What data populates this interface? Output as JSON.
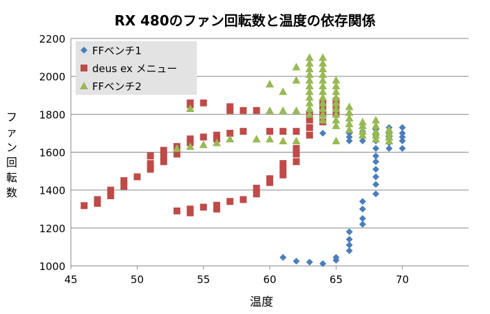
{
  "chart_data": {
    "type": "scatter",
    "title": "RX 480のファン回転数と温度の依存関係",
    "xlabel": "温度",
    "ylabel": "ファン回転数",
    "xlim": [
      45,
      75
    ],
    "ylim": [
      1000,
      2200
    ],
    "x_ticks": [
      "45",
      "50",
      "55",
      "60",
      "65",
      "70"
    ],
    "y_ticks": [
      "1000",
      "1200",
      "1400",
      "1600",
      "1800",
      "2000",
      "2200"
    ],
    "grid": "horizontal",
    "legend_position": "top-left",
    "series": [
      {
        "name": "FFベンチ1",
        "marker": "diamond",
        "color": "#4a7ebb",
        "points": [
          [
            61,
            1045
          ],
          [
            62,
            1025
          ],
          [
            63,
            1020
          ],
          [
            64,
            1012
          ],
          [
            65,
            1045
          ],
          [
            65,
            1030
          ],
          [
            66,
            1180
          ],
          [
            66,
            1140
          ],
          [
            66,
            1110
          ],
          [
            66,
            1080
          ],
          [
            67,
            1340
          ],
          [
            67,
            1300
          ],
          [
            67,
            1250
          ],
          [
            67,
            1220
          ],
          [
            68,
            1580
          ],
          [
            68,
            1550
          ],
          [
            68,
            1510
          ],
          [
            68,
            1470
          ],
          [
            68,
            1430
          ],
          [
            68,
            1380
          ],
          [
            68,
            1620
          ],
          [
            68,
            1660
          ],
          [
            68,
            1690
          ],
          [
            68,
            1720
          ],
          [
            67,
            1660
          ],
          [
            67,
            1680
          ],
          [
            67,
            1710
          ],
          [
            66,
            1660
          ],
          [
            66,
            1680
          ],
          [
            66,
            1700
          ],
          [
            64,
            1700
          ],
          [
            69,
            1620
          ],
          [
            69,
            1650
          ],
          [
            69,
            1680
          ],
          [
            69,
            1700
          ],
          [
            69,
            1730
          ],
          [
            70,
            1620
          ],
          [
            70,
            1660
          ],
          [
            70,
            1680
          ],
          [
            70,
            1700
          ],
          [
            70,
            1730
          ]
        ]
      },
      {
        "name": "deus ex メニュー",
        "marker": "square",
        "color": "#be4b48",
        "points": [
          [
            46,
            1318
          ],
          [
            47,
            1330
          ],
          [
            47,
            1350
          ],
          [
            48,
            1370
          ],
          [
            48,
            1400
          ],
          [
            49,
            1420
          ],
          [
            49,
            1450
          ],
          [
            50,
            1470
          ],
          [
            51,
            1510
          ],
          [
            51,
            1540
          ],
          [
            51,
            1580
          ],
          [
            52,
            1550
          ],
          [
            52,
            1580
          ],
          [
            52,
            1610
          ],
          [
            53,
            1590
          ],
          [
            53,
            1630
          ],
          [
            54,
            1650
          ],
          [
            54,
            1670
          ],
          [
            55,
            1680
          ],
          [
            56,
            1690
          ],
          [
            56,
            1670
          ],
          [
            57,
            1700
          ],
          [
            58,
            1710
          ],
          [
            60,
            1710
          ],
          [
            61,
            1710
          ],
          [
            62,
            1710
          ],
          [
            63,
            1690
          ],
          [
            63,
            1730
          ],
          [
            63,
            1770
          ],
          [
            63,
            1800
          ],
          [
            64,
            1760
          ],
          [
            64,
            1800
          ],
          [
            64,
            1840
          ],
          [
            64,
            1860
          ],
          [
            65,
            1800
          ],
          [
            65,
            1840
          ],
          [
            65,
            1870
          ],
          [
            54,
            1860
          ],
          [
            54,
            1850
          ],
          [
            55,
            1860
          ],
          [
            57,
            1820
          ],
          [
            57,
            1840
          ],
          [
            58,
            1820
          ],
          [
            59,
            1820
          ],
          [
            53,
            1290
          ],
          [
            54,
            1280
          ],
          [
            54,
            1300
          ],
          [
            55,
            1310
          ],
          [
            56,
            1320
          ],
          [
            56,
            1300
          ],
          [
            57,
            1340
          ],
          [
            58,
            1350
          ],
          [
            59,
            1380
          ],
          [
            59,
            1410
          ],
          [
            60,
            1440
          ],
          [
            60,
            1460
          ],
          [
            61,
            1480
          ],
          [
            61,
            1510
          ],
          [
            61,
            1540
          ],
          [
            62,
            1550
          ],
          [
            62,
            1590
          ],
          [
            62,
            1620
          ]
        ]
      },
      {
        "name": "FFベンチ2",
        "marker": "triangle",
        "color": "#98b954",
        "points": [
          [
            53,
            1620
          ],
          [
            54,
            1630
          ],
          [
            54,
            1830
          ],
          [
            55,
            1640
          ],
          [
            56,
            1650
          ],
          [
            57,
            1670
          ],
          [
            59,
            1670
          ],
          [
            60,
            1960
          ],
          [
            60,
            1820
          ],
          [
            60,
            1670
          ],
          [
            61,
            1920
          ],
          [
            61,
            1820
          ],
          [
            61,
            1660
          ],
          [
            62,
            2050
          ],
          [
            62,
            1820
          ],
          [
            62,
            1660
          ],
          [
            62,
            1980
          ],
          [
            63,
            2100
          ],
          [
            63,
            2070
          ],
          [
            63,
            2040
          ],
          [
            63,
            2010
          ],
          [
            63,
            1980
          ],
          [
            63,
            1950
          ],
          [
            63,
            1920
          ],
          [
            63,
            1890
          ],
          [
            63,
            1860
          ],
          [
            63,
            1830
          ],
          [
            63,
            1800
          ],
          [
            64,
            2100
          ],
          [
            64,
            2070
          ],
          [
            64,
            2040
          ],
          [
            64,
            2010
          ],
          [
            64,
            1980
          ],
          [
            64,
            1950
          ],
          [
            64,
            1920
          ],
          [
            64,
            1890
          ],
          [
            64,
            1860
          ],
          [
            64,
            1830
          ],
          [
            64,
            1800
          ],
          [
            64,
            1770
          ],
          [
            65,
            1980
          ],
          [
            65,
            1950
          ],
          [
            65,
            1920
          ],
          [
            65,
            1890
          ],
          [
            65,
            1860
          ],
          [
            65,
            1830
          ],
          [
            65,
            1800
          ],
          [
            65,
            1770
          ],
          [
            65,
            1740
          ],
          [
            65,
            1660
          ],
          [
            66,
            1840
          ],
          [
            66,
            1810
          ],
          [
            66,
            1780
          ],
          [
            66,
            1750
          ],
          [
            66,
            1720
          ],
          [
            67,
            1760
          ],
          [
            67,
            1740
          ],
          [
            67,
            1710
          ],
          [
            67,
            1690
          ],
          [
            68,
            1770
          ],
          [
            68,
            1740
          ],
          [
            68,
            1710
          ],
          [
            68,
            1690
          ],
          [
            68,
            1670
          ],
          [
            69,
            1720
          ],
          [
            69,
            1700
          ],
          [
            69,
            1680
          ],
          [
            69,
            1660
          ]
        ]
      }
    ]
  }
}
